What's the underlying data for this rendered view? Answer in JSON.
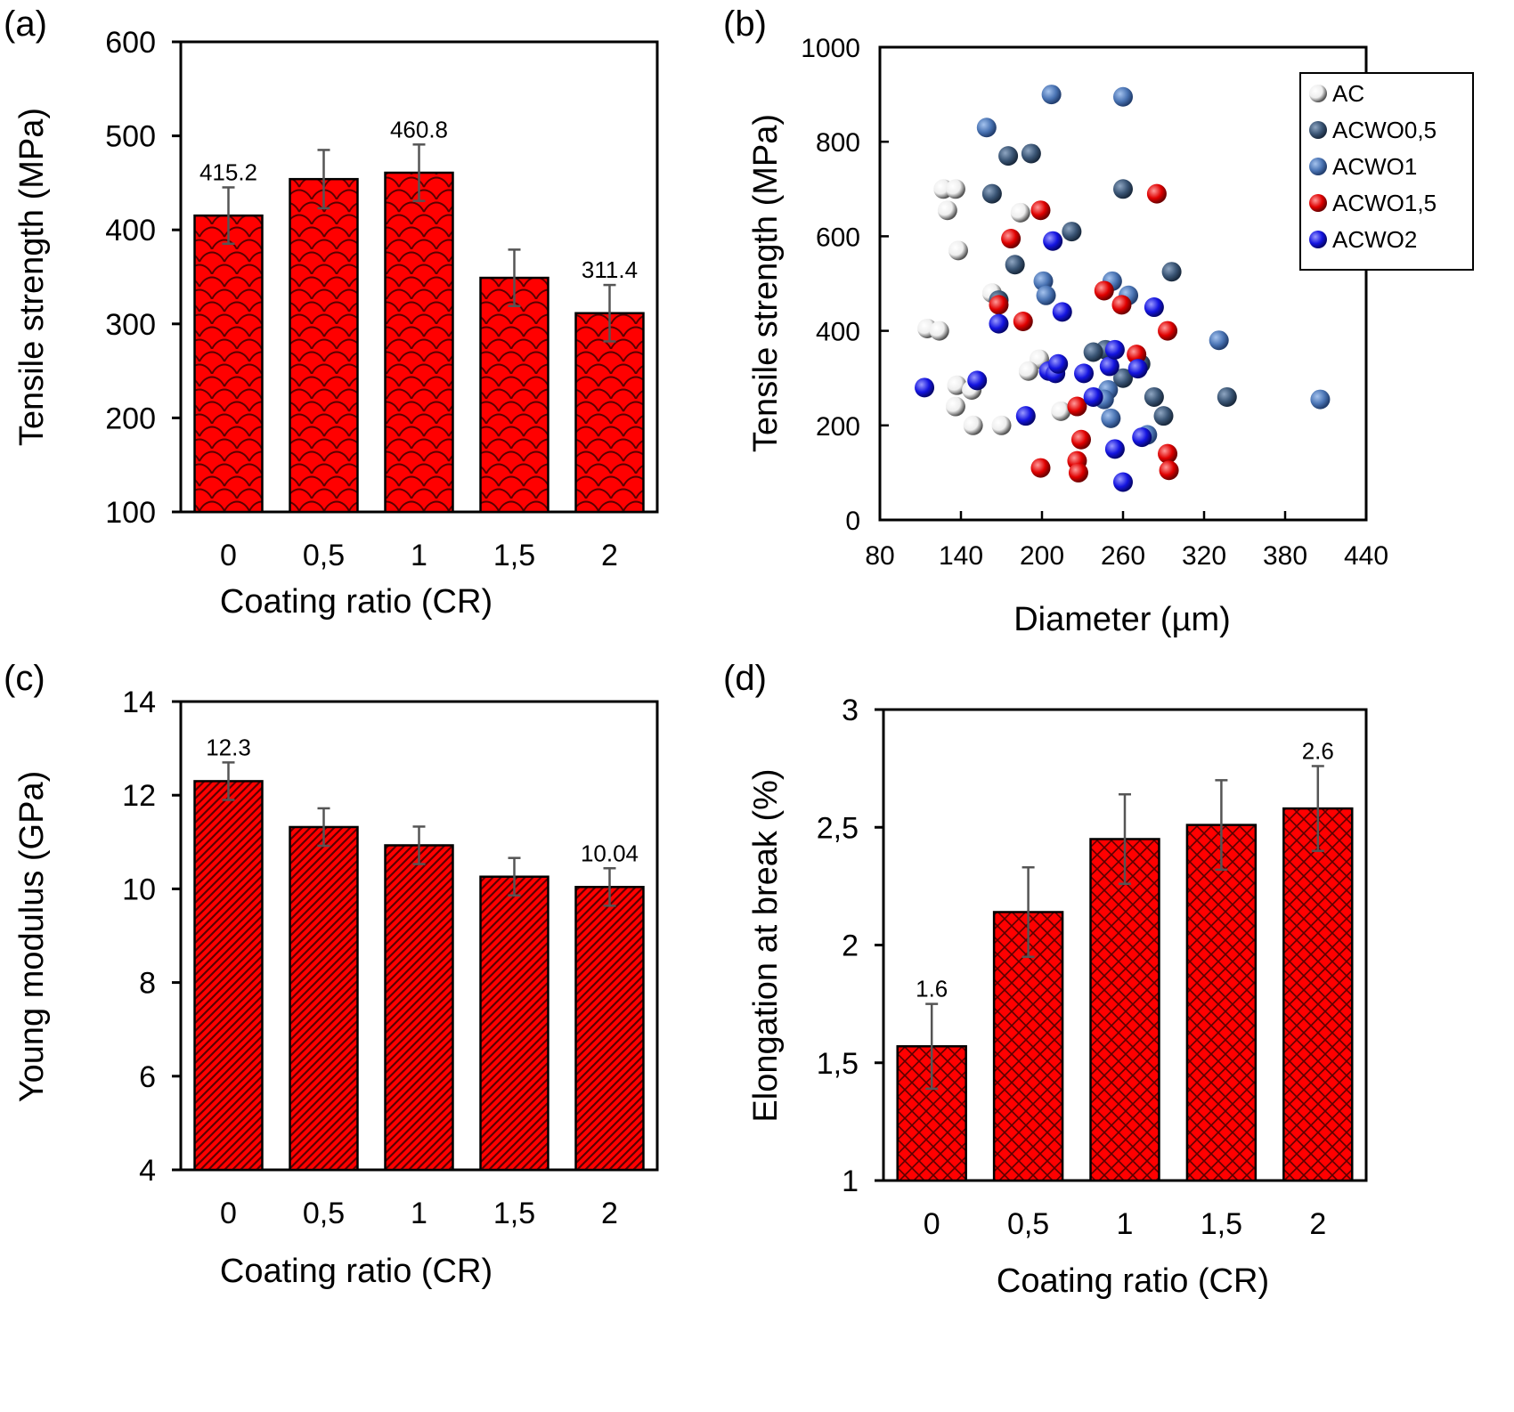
{
  "colors": {
    "bar": "#ff0000",
    "bar_pattern": "#6b0000",
    "error": "#555555",
    "AC": "#f2f2f2",
    "ACWO0,5": "#3a5575",
    "ACWO1": "#4a74b4",
    "ACWO1,5": "#e00000",
    "ACWO2": "#1414e0"
  },
  "chart_data": [
    {
      "id": "a",
      "type": "bar",
      "panel_label": "(a)",
      "categories": [
        "0",
        "0,5",
        "1",
        "1,5",
        "2"
      ],
      "values": [
        415.2,
        454,
        460.8,
        349,
        311.4
      ],
      "errors": [
        30,
        31,
        30,
        30,
        30
      ],
      "data_labels": [
        "415.2",
        "",
        "460.8",
        "",
        "311.4"
      ],
      "xlabel": "Coating ratio (CR)",
      "ylabel": "Tensile strength (MPa)",
      "ylim": [
        100,
        600
      ],
      "yticks": [
        100,
        200,
        300,
        400,
        500,
        600
      ],
      "ytick_labels": [
        "100",
        "200",
        "300",
        "400",
        "500",
        "600"
      ]
    },
    {
      "id": "b",
      "type": "scatter",
      "panel_label": "(b)",
      "xlabel": "Diameter (µm)",
      "ylabel": "Tensile strength (MPa)",
      "xlim": [
        80,
        440
      ],
      "ylim": [
        0,
        1000
      ],
      "xticks": [
        80,
        140,
        200,
        260,
        320,
        380,
        440
      ],
      "xtick_labels": [
        "80",
        "140",
        "200",
        "260",
        "320",
        "380",
        "440"
      ],
      "yticks": [
        0,
        200,
        400,
        600,
        800,
        1000
      ],
      "ytick_labels": [
        "0",
        "200",
        "400",
        "600",
        "800",
        "1000"
      ],
      "legend_position": "top-right",
      "series": [
        {
          "name": "AC",
          "x": [
            127,
            136,
            130,
            138,
            163,
            184,
            115,
            124,
            137,
            148,
            198,
            190,
            136,
            149,
            170,
            214
          ],
          "y": [
            700,
            700,
            655,
            570,
            480,
            650,
            405,
            400,
            285,
            275,
            340,
            315,
            240,
            200,
            200,
            230
          ]
        },
        {
          "name": "ACWO0,5",
          "x": [
            163,
            175,
            192,
            222,
            180,
            168,
            260,
            296,
            247,
            238,
            273,
            260,
            283,
            290,
            337
          ],
          "y": [
            690,
            770,
            775,
            610,
            540,
            465,
            700,
            525,
            360,
            355,
            330,
            300,
            260,
            220,
            260
          ]
        },
        {
          "name": "ACWO1",
          "x": [
            159,
            207,
            260,
            201,
            203,
            252,
            264,
            249,
            246,
            278,
            331,
            406,
            251
          ],
          "y": [
            830,
            900,
            895,
            505,
            475,
            505,
            475,
            275,
            255,
            180,
            380,
            255,
            215
          ]
        },
        {
          "name": "ACWO1,5",
          "x": [
            177,
            199,
            168,
            186,
            246,
            259,
            270,
            293,
            285,
            226,
            229,
            226,
            227,
            199,
            293,
            294
          ],
          "y": [
            595,
            655,
            455,
            420,
            485,
            455,
            350,
            400,
            690,
            240,
            170,
            125,
            100,
            110,
            140,
            105
          ]
        },
        {
          "name": "ACWO2",
          "x": [
            208,
            168,
            215,
            113,
            152,
            205,
            210,
            212,
            231,
            238,
            250,
            254,
            271,
            283,
            188,
            254,
            274,
            260
          ],
          "y": [
            590,
            415,
            440,
            280,
            295,
            315,
            310,
            330,
            310,
            260,
            325,
            360,
            320,
            450,
            220,
            150,
            175,
            80
          ]
        }
      ]
    },
    {
      "id": "c",
      "type": "bar",
      "panel_label": "(c)",
      "categories": [
        "0",
        "0,5",
        "1",
        "1,5",
        "2"
      ],
      "values": [
        12.3,
        11.32,
        10.93,
        10.26,
        10.04
      ],
      "errors": [
        0.4,
        0.4,
        0.4,
        0.4,
        0.4
      ],
      "data_labels": [
        "12.3",
        "",
        "",
        "",
        "10.04"
      ],
      "xlabel": "Coating ratio (CR)",
      "ylabel": "Young modulus (GPa)",
      "ylim": [
        4,
        14
      ],
      "yticks": [
        4,
        6,
        8,
        10,
        12,
        14
      ],
      "ytick_labels": [
        "4",
        "6",
        "8",
        "10",
        "12",
        "14"
      ]
    },
    {
      "id": "d",
      "type": "bar",
      "panel_label": "(d)",
      "categories": [
        "0",
        "0,5",
        "1",
        "1,5",
        "2"
      ],
      "values": [
        1.57,
        2.14,
        2.45,
        2.51,
        2.58
      ],
      "errors": [
        0.18,
        0.19,
        0.19,
        0.19,
        0.18
      ],
      "data_labels": [
        "1.6",
        "",
        "",
        "",
        "2.6"
      ],
      "xlabel": "Coating ratio (CR)",
      "ylabel": "Elongation at break (%)",
      "ylim": [
        1,
        3
      ],
      "yticks": [
        1,
        1.5,
        2,
        2.5,
        3
      ],
      "ytick_labels": [
        "1",
        "1,5",
        "2",
        "2,5",
        "3"
      ]
    }
  ]
}
